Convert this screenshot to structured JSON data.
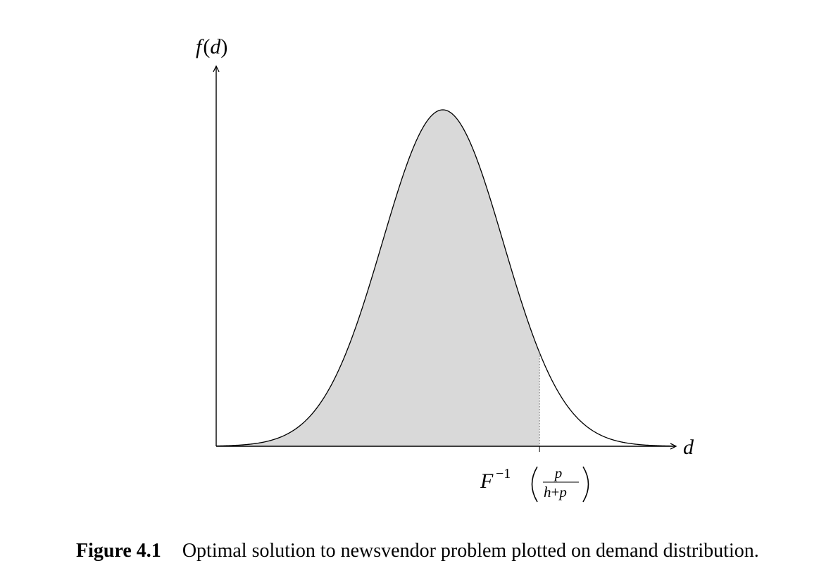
{
  "chart_data": {
    "type": "area",
    "distribution": "normal",
    "mean": 0,
    "std_dev": 1,
    "x_range": [
      -3.75,
      3.8
    ],
    "shaded_until": 1.6,
    "axes": {
      "y_label_func": "f",
      "y_label_arg": "d",
      "x_label": "d"
    },
    "marker_label": {
      "base": "F",
      "exponent": "−1",
      "numerator": "p",
      "denominator_h": "h",
      "plus": "+",
      "denominator_p": "p"
    },
    "fill_color": "#d9d9d9",
    "line_color": "#000000"
  },
  "caption": {
    "label": "Figure 4.1",
    "text": "Optimal solution to newsvendor problem plotted on demand distribution."
  }
}
